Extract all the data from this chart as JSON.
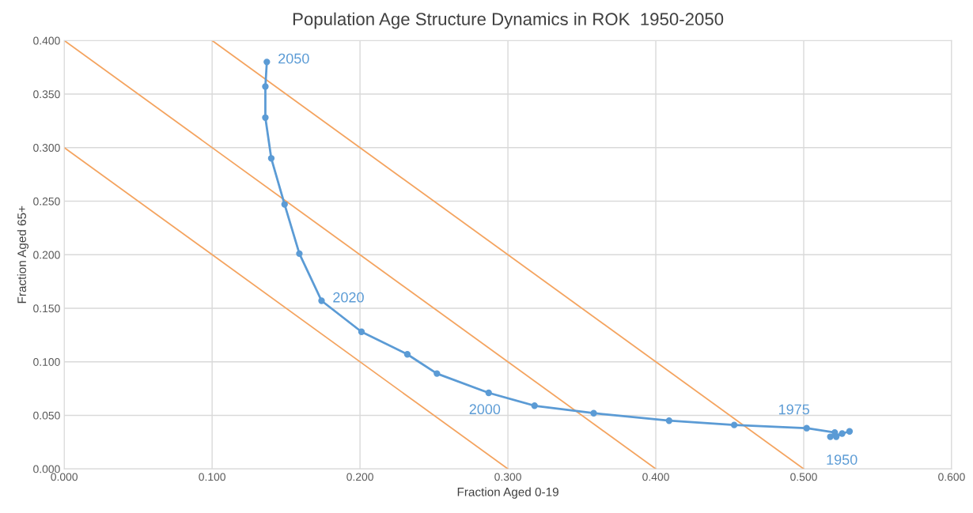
{
  "chart_data": {
    "type": "line",
    "title": "Population Age Structure Dynamics in ROK  1950-2050",
    "xlabel": "Fraction Aged 0-19",
    "ylabel": "Fraction Aged 65+",
    "series": [
      {
        "color": "#5b9bd5",
        "marker": "circle",
        "x": [
          0.518,
          0.531,
          0.526,
          0.522,
          0.521,
          0.502,
          0.453,
          0.409,
          0.358,
          0.318,
          0.287,
          0.252,
          0.232,
          0.201,
          0.174,
          0.159,
          0.149,
          0.14,
          0.136,
          0.136,
          0.137
        ],
        "values": [
          0.03,
          0.035,
          0.033,
          0.03,
          0.034,
          0.038,
          0.041,
          0.045,
          0.052,
          0.059,
          0.071,
          0.089,
          0.107,
          0.128,
          0.157,
          0.201,
          0.247,
          0.29,
          0.328,
          0.357,
          0.38
        ]
      },
      {
        "color": "#f4a460",
        "marker": "none",
        "x": [
          0.0,
          0.3
        ],
        "values": [
          0.3,
          0.0
        ]
      },
      {
        "color": "#f4a460",
        "marker": "none",
        "x": [
          0.0,
          0.4
        ],
        "values": [
          0.4,
          0.0
        ]
      },
      {
        "color": "#f4a460",
        "marker": "none",
        "x": [
          0.1,
          0.5
        ],
        "values": [
          0.4,
          0.0
        ]
      }
    ],
    "annotations": [
      {
        "text": "2050",
        "x": 0.137,
        "y": 0.38
      },
      {
        "text": "2020",
        "x": 0.174,
        "y": 0.157
      },
      {
        "text": "2000",
        "x": 0.287,
        "y": 0.071
      },
      {
        "text": "1975",
        "x": 0.502,
        "y": 0.038
      },
      {
        "text": "1950",
        "x": 0.518,
        "y": 0.03
      }
    ],
    "xlim": [
      0,
      0.6
    ],
    "ylim": [
      0,
      0.4
    ],
    "xticks": [
      {
        "value": 0,
        "label": "0.000"
      },
      {
        "value": 0.1,
        "label": "0.100"
      },
      {
        "value": 0.2,
        "label": "0.200"
      },
      {
        "value": 0.3,
        "label": "0.300"
      },
      {
        "value": 0.4,
        "label": "0.400"
      },
      {
        "value": 0.5,
        "label": "0.500"
      },
      {
        "value": 0.6,
        "label": "0.600"
      }
    ],
    "yticks": [
      {
        "value": 0,
        "label": "0.000"
      },
      {
        "value": 0.05,
        "label": "0.050"
      },
      {
        "value": 0.1,
        "label": "0.100"
      },
      {
        "value": 0.15,
        "label": "0.150"
      },
      {
        "value": 0.2,
        "label": "0.200"
      },
      {
        "value": 0.25,
        "label": "0.250"
      },
      {
        "value": 0.3,
        "label": "0.300"
      },
      {
        "value": 0.35,
        "label": "0.350"
      },
      {
        "value": 0.4,
        "label": "0.400"
      }
    ],
    "grid": true,
    "legend": false
  }
}
